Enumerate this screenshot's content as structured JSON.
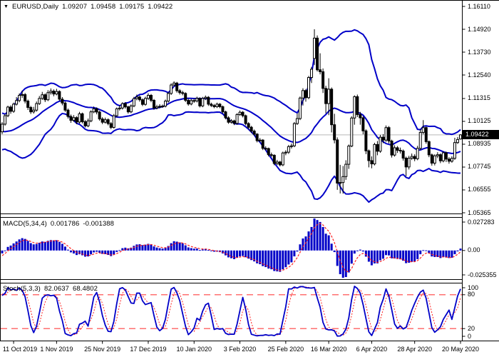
{
  "header": {
    "symbol": "EURUSD,Daily",
    "open": "1.09207",
    "high": "1.09458",
    "low": "1.09175",
    "close": "1.09422"
  },
  "colors": {
    "background": "#ffffff",
    "border": "#000000",
    "candle": "#000000",
    "candle_bull_fill": "#ffffff",
    "bands": "#0000c8",
    "histogram": "#0000c8",
    "signal_line": "#ff2020",
    "stoch_k": "#0000c8",
    "stoch_d": "#ff2020",
    "level_line": "#ff4040",
    "price_line": "#b9b9b9",
    "price_box_bg": "#000000",
    "price_box_text": "#ffffff"
  },
  "main_axis": {
    "labels": [
      "1.16110",
      "1.14920",
      "1.13730",
      "1.12540",
      "1.11315",
      "1.10125",
      "1.08935",
      "1.07745",
      "1.06555",
      "1.05365"
    ],
    "current_label": "1.09422",
    "current_price": 1.09422
  },
  "macd_panel": {
    "title": "MACD(5,34,4)",
    "value1": "0.001786",
    "value2": "-0.001388",
    "axis_labels": [
      "0.027283",
      "0.00",
      "-0.025355"
    ]
  },
  "stoch_panel": {
    "title": "Stoch(5,3,3)",
    "value1": "82.0637",
    "value2": "68.4802",
    "axis_labels": [
      "100",
      "80",
      "20",
      "0"
    ],
    "levels": [
      80,
      20
    ]
  },
  "x_axis": {
    "labels": [
      {
        "text": "11 Oct 2019",
        "index": 4
      },
      {
        "text": "1 Nov 2019",
        "index": 19
      },
      {
        "text": "25 Nov 2019",
        "index": 35
      },
      {
        "text": "17 Dec 2019",
        "index": 51
      },
      {
        "text": "10 Jan 2020",
        "index": 67
      },
      {
        "text": "3 Feb 2020",
        "index": 83
      },
      {
        "text": "25 Feb 2020",
        "index": 99
      },
      {
        "text": "16 Mar 2020",
        "index": 114
      },
      {
        "text": "6 Apr 2020",
        "index": 129
      },
      {
        "text": "28 Apr 2020",
        "index": 144
      },
      {
        "text": "20 May 2020",
        "index": 160
      }
    ]
  },
  "chart_data": {
    "type": "candlestick",
    "symbol": "EURUSD",
    "timeframe": "Daily",
    "y_min": 1.05365,
    "y_max": 1.1611,
    "indicators": {
      "bollinger": {
        "period": 20,
        "deviation": 2
      },
      "macd": {
        "fast": 5,
        "slow": 34,
        "signal": 4,
        "last": 0.001786,
        "last_signal": -0.001388,
        "max": 0.027283,
        "min": -0.025355
      },
      "stochastic": {
        "k": 5,
        "slowing": 3,
        "d": 3,
        "last_k": 82.0637,
        "last_d": 68.4802
      }
    },
    "pre_candles": [
      [
        1.1082,
        1.1085,
        1.1058,
        1.107
      ],
      [
        1.107,
        1.1088,
        1.1052,
        1.1065
      ],
      [
        1.1065,
        1.1071,
        1.103,
        1.1042
      ],
      [
        1.1042,
        1.105,
        1.1008,
        1.1021
      ],
      [
        1.1021,
        1.1029,
        1.0982,
        1.0991
      ],
      [
        1.0991,
        1.0996,
        1.0951,
        1.0965
      ],
      [
        1.0965,
        1.0999,
        1.0957,
        1.0985
      ],
      [
        1.0985,
        1.0991,
        1.0945,
        1.0959
      ],
      [
        1.0959,
        1.0966,
        1.0926,
        1.094
      ],
      [
        1.094,
        1.0952,
        1.0917,
        1.0929
      ],
      [
        1.0929,
        1.0948,
        1.0921,
        1.0935
      ],
      [
        1.0935,
        1.094,
        1.0894,
        1.0905
      ],
      [
        1.0905,
        1.0917,
        1.0879,
        1.0893
      ],
      [
        1.0893,
        1.0915,
        1.0885,
        1.0902
      ],
      [
        1.0902,
        1.0908,
        1.0872,
        1.0886
      ],
      [
        1.0886,
        1.0925,
        1.088,
        1.0913
      ],
      [
        1.0913,
        1.0972,
        1.0905,
        1.0965
      ],
      [
        1.0965,
        1.0995,
        1.0958,
        1.0982
      ],
      [
        1.0982,
        1.0991,
        1.0955,
        1.097
      ],
      [
        1.097,
        1.0978,
        1.0944,
        1.0958
      ]
    ],
    "candles": [
      [
        1.0958,
        1.1009,
        1.0946,
        1.0998
      ],
      [
        1.0998,
        1.1051,
        1.099,
        1.1042
      ],
      [
        1.1042,
        1.1094,
        1.1034,
        1.1087
      ],
      [
        1.1087,
        1.1096,
        1.1052,
        1.1065
      ],
      [
        1.1065,
        1.111,
        1.1057,
        1.1102
      ],
      [
        1.1102,
        1.1139,
        1.1095,
        1.1121
      ],
      [
        1.1121,
        1.1158,
        1.1112,
        1.1148
      ],
      [
        1.1148,
        1.1172,
        1.1135,
        1.1152
      ],
      [
        1.1152,
        1.116,
        1.1106,
        1.1118
      ],
      [
        1.1118,
        1.1126,
        1.1072,
        1.1085
      ],
      [
        1.1085,
        1.1093,
        1.1051,
        1.1062
      ],
      [
        1.1062,
        1.1088,
        1.1053,
        1.1071
      ],
      [
        1.1071,
        1.1116,
        1.1063,
        1.1105
      ],
      [
        1.1105,
        1.1145,
        1.1098,
        1.1132
      ],
      [
        1.1132,
        1.1166,
        1.1124,
        1.1151
      ],
      [
        1.1151,
        1.1158,
        1.1113,
        1.1125
      ],
      [
        1.1125,
        1.1175,
        1.1118,
        1.1162
      ],
      [
        1.1162,
        1.1184,
        1.1152,
        1.117
      ],
      [
        1.117,
        1.1179,
        1.1143,
        1.1155
      ],
      [
        1.1155,
        1.1182,
        1.1148,
        1.1168
      ],
      [
        1.1168,
        1.1174,
        1.1119,
        1.1128
      ],
      [
        1.1128,
        1.1139,
        1.1096,
        1.1108
      ],
      [
        1.1108,
        1.1115,
        1.1062,
        1.1071
      ],
      [
        1.1071,
        1.1079,
        1.1027,
        1.1038
      ],
      [
        1.1038,
        1.1048,
        1.1005,
        1.1018
      ],
      [
        1.1018,
        1.1045,
        1.101,
        1.1032
      ],
      [
        1.1032,
        1.1039,
        1.0998,
        1.1009
      ],
      [
        1.1009,
        1.1062,
        1.1001,
        1.1052
      ],
      [
        1.1052,
        1.1058,
        1.1002,
        1.1011
      ],
      [
        1.1011,
        1.1019,
        1.0981,
        1.0989
      ],
      [
        1.0989,
        1.1027,
        1.0982,
        1.1015
      ],
      [
        1.1015,
        1.107,
        1.1008,
        1.1062
      ],
      [
        1.1062,
        1.109,
        1.1055,
        1.1078
      ],
      [
        1.1078,
        1.1085,
        1.1049,
        1.1061
      ],
      [
        1.1061,
        1.1068,
        1.1016,
        1.1025
      ],
      [
        1.1025,
        1.1034,
        1.0998,
        1.1008
      ],
      [
        1.1008,
        1.1032,
        1.1001,
        1.1021
      ],
      [
        1.1021,
        1.1028,
        1.0992,
        1.1001
      ],
      [
        1.1001,
        1.1009,
        1.0972,
        1.0981
      ],
      [
        1.0981,
        1.1051,
        1.0975,
        1.1042
      ],
      [
        1.1042,
        1.1085,
        1.1034,
        1.1078
      ],
      [
        1.1078,
        1.1096,
        1.1069,
        1.1082
      ],
      [
        1.1082,
        1.1112,
        1.1074,
        1.1105
      ],
      [
        1.1105,
        1.1113,
        1.1079,
        1.1088
      ],
      [
        1.1088,
        1.1094,
        1.1053,
        1.1062
      ],
      [
        1.1062,
        1.1101,
        1.1055,
        1.1093
      ],
      [
        1.1093,
        1.114,
        1.1086,
        1.1131
      ],
      [
        1.1131,
        1.1152,
        1.1122,
        1.1139
      ],
      [
        1.1139,
        1.1147,
        1.1115,
        1.1125
      ],
      [
        1.1125,
        1.1132,
        1.1092,
        1.1101
      ],
      [
        1.1101,
        1.1141,
        1.1094,
        1.1132
      ],
      [
        1.1132,
        1.1159,
        1.1124,
        1.1148
      ],
      [
        1.1148,
        1.1155,
        1.1112,
        1.1122
      ],
      [
        1.1122,
        1.1129,
        1.1073,
        1.1082
      ],
      [
        1.1082,
        1.1099,
        1.1075,
        1.1088
      ],
      [
        1.1088,
        1.1102,
        1.108,
        1.1091
      ],
      [
        1.1091,
        1.11,
        1.1083,
        1.1092
      ],
      [
        1.1092,
        1.1126,
        1.1085,
        1.1118
      ],
      [
        1.1118,
        1.1166,
        1.111,
        1.1158
      ],
      [
        1.1158,
        1.1211,
        1.115,
        1.1202
      ],
      [
        1.1202,
        1.1221,
        1.1193,
        1.1212
      ],
      [
        1.1212,
        1.1218,
        1.1162,
        1.1172
      ],
      [
        1.1172,
        1.1181,
        1.1152,
        1.1162
      ],
      [
        1.1162,
        1.1172,
        1.1148,
        1.1158
      ],
      [
        1.1158,
        1.1164,
        1.1113,
        1.1122
      ],
      [
        1.1122,
        1.113,
        1.1094,
        1.1103
      ],
      [
        1.1103,
        1.1129,
        1.1096,
        1.1121
      ],
      [
        1.1121,
        1.1132,
        1.1109,
        1.1119
      ],
      [
        1.1119,
        1.1141,
        1.1111,
        1.1132
      ],
      [
        1.1132,
        1.1138,
        1.1085,
        1.1093
      ],
      [
        1.1093,
        1.114,
        1.1086,
        1.1132
      ],
      [
        1.1132,
        1.1147,
        1.1123,
        1.1138
      ],
      [
        1.1138,
        1.1144,
        1.1093,
        1.1102
      ],
      [
        1.1102,
        1.111,
        1.1087,
        1.1095
      ],
      [
        1.1095,
        1.1103,
        1.1081,
        1.1089
      ],
      [
        1.1089,
        1.111,
        1.1082,
        1.1102
      ],
      [
        1.1102,
        1.1108,
        1.1081,
        1.1089
      ],
      [
        1.1089,
        1.1095,
        1.1054,
        1.1062
      ],
      [
        1.1062,
        1.1068,
        1.1023,
        1.1031
      ],
      [
        1.1031,
        1.1039,
        1.1,
        1.1008
      ],
      [
        1.1008,
        1.1024,
        1.1001,
        1.1015
      ],
      [
        1.1015,
        1.1021,
        1.0993,
        1.1002
      ],
      [
        1.1002,
        1.1055,
        1.0995,
        1.1048
      ],
      [
        1.1048,
        1.1069,
        1.1041,
        1.106
      ],
      [
        1.106,
        1.1066,
        1.1033,
        1.1042
      ],
      [
        1.1042,
        1.1048,
        1.0992,
        1.1001
      ],
      [
        1.1001,
        1.1008,
        1.0972,
        1.0982
      ],
      [
        1.0982,
        1.0989,
        1.0952,
        1.0962
      ],
      [
        1.0962,
        1.097,
        1.0937,
        1.0946
      ],
      [
        1.0946,
        1.0951,
        1.0903,
        1.0912
      ],
      [
        1.0912,
        1.0926,
        1.0904,
        1.0915
      ],
      [
        1.0915,
        1.092,
        1.0863,
        1.0872
      ],
      [
        1.0872,
        1.0883,
        1.0861,
        1.0871
      ],
      [
        1.0871,
        1.0876,
        1.083,
        1.0839
      ],
      [
        1.0839,
        1.085,
        1.0827,
        1.0836
      ],
      [
        1.0836,
        1.0841,
        1.0784,
        1.0793
      ],
      [
        1.0793,
        1.0812,
        1.0785,
        1.0801
      ],
      [
        1.0801,
        1.0807,
        1.0778,
        1.0786
      ],
      [
        1.0786,
        1.0855,
        1.0779,
        1.0848
      ],
      [
        1.0848,
        1.0862,
        1.0836,
        1.0852
      ],
      [
        1.0852,
        1.089,
        1.0843,
        1.0881
      ],
      [
        1.0881,
        1.0897,
        1.0871,
        1.0885
      ],
      [
        1.0885,
        1.1009,
        1.0878,
        1.1001
      ],
      [
        1.1001,
        1.1053,
        1.0994,
        1.1027
      ],
      [
        1.1027,
        1.1142,
        1.1019,
        1.1134
      ],
      [
        1.1134,
        1.1185,
        1.1095,
        1.1173
      ],
      [
        1.1173,
        1.1181,
        1.1115,
        1.1136
      ],
      [
        1.1136,
        1.1249,
        1.1128,
        1.1241
      ],
      [
        1.1241,
        1.1296,
        1.1212,
        1.1284
      ],
      [
        1.134,
        1.1492,
        1.1305,
        1.1446
      ],
      [
        1.1446,
        1.146,
        1.1272,
        1.1281
      ],
      [
        1.1281,
        1.1367,
        1.1257,
        1.1271
      ],
      [
        1.1271,
        1.1288,
        1.116,
        1.1184
      ],
      [
        1.1184,
        1.1198,
        1.1054,
        1.1105
      ],
      [
        1.1105,
        1.1237,
        1.1045,
        1.118
      ],
      [
        1.118,
        1.1189,
        1.0955,
        1.0995
      ],
      [
        1.0995,
        1.1052,
        1.0898,
        1.0916
      ],
      [
        1.0916,
        1.0929,
        1.0656,
        1.0691
      ],
      [
        1.0691,
        1.0786,
        1.0637,
        1.0694
      ],
      [
        1.0694,
        1.078,
        1.0636,
        1.0725
      ],
      [
        1.0725,
        1.081,
        1.0708,
        1.0789
      ],
      [
        1.0789,
        1.0892,
        1.0765,
        1.0884
      ],
      [
        1.0884,
        1.1039,
        1.0878,
        1.103
      ],
      [
        1.103,
        1.1148,
        1.0995,
        1.1141
      ],
      [
        1.1141,
        1.1152,
        1.1035,
        1.1048
      ],
      [
        1.1048,
        1.1062,
        1.0995,
        1.1031
      ],
      [
        1.1031,
        1.1039,
        1.0945,
        1.0963
      ],
      [
        1.0963,
        1.0971,
        1.0842,
        1.0859
      ],
      [
        1.0859,
        1.0866,
        1.0773,
        1.0808
      ],
      [
        1.0808,
        1.083,
        1.0768,
        1.0791
      ],
      [
        1.0791,
        1.0901,
        1.0783,
        1.0892
      ],
      [
        1.0892,
        1.091,
        1.0836,
        1.0857
      ],
      [
        1.0857,
        1.0942,
        1.0849,
        1.093
      ],
      [
        1.093,
        1.0946,
        1.0899,
        1.0915
      ],
      [
        1.0915,
        1.0991,
        1.0906,
        1.098
      ],
      [
        1.098,
        1.0988,
        1.0898,
        1.091
      ],
      [
        1.091,
        1.0917,
        1.0824,
        1.0837
      ],
      [
        1.0837,
        1.0888,
        1.0829,
        1.0875
      ],
      [
        1.0875,
        1.0884,
        1.0848,
        1.0862
      ],
      [
        1.0862,
        1.0876,
        1.0845,
        1.0858
      ],
      [
        1.0858,
        1.0866,
        1.0808,
        1.0821
      ],
      [
        1.0821,
        1.0829,
        1.0727,
        1.0775
      ],
      [
        1.0775,
        1.0833,
        1.0762,
        1.0821
      ],
      [
        1.0821,
        1.0845,
        1.0811,
        1.083
      ],
      [
        1.083,
        1.0841,
        1.0805,
        1.0818
      ],
      [
        1.0818,
        1.0885,
        1.081,
        1.0872
      ],
      [
        1.0872,
        1.0972,
        1.0864,
        1.0955
      ],
      [
        1.0955,
        1.1019,
        1.0945,
        1.098
      ],
      [
        1.098,
        1.0986,
        1.0896,
        1.0907
      ],
      [
        1.0907,
        1.0913,
        1.0826,
        1.0838
      ],
      [
        1.0838,
        1.0845,
        1.0782,
        1.0795
      ],
      [
        1.0795,
        1.0841,
        1.0783,
        1.0833
      ],
      [
        1.0833,
        1.0852,
        1.0821,
        1.0839
      ],
      [
        1.0839,
        1.0846,
        1.0795,
        1.0807
      ],
      [
        1.0807,
        1.0857,
        1.0799,
        1.0849
      ],
      [
        1.0849,
        1.0855,
        1.0801,
        1.0816
      ],
      [
        1.0816,
        1.0826,
        1.0792,
        1.0805
      ],
      [
        1.0805,
        1.0831,
        1.0797,
        1.082
      ],
      [
        1.082,
        1.0927,
        1.0812,
        1.0902
      ],
      [
        1.0902,
        1.0931,
        1.0895,
        1.0918
      ],
      [
        1.09207,
        1.09458,
        1.09175,
        1.09422
      ]
    ]
  }
}
